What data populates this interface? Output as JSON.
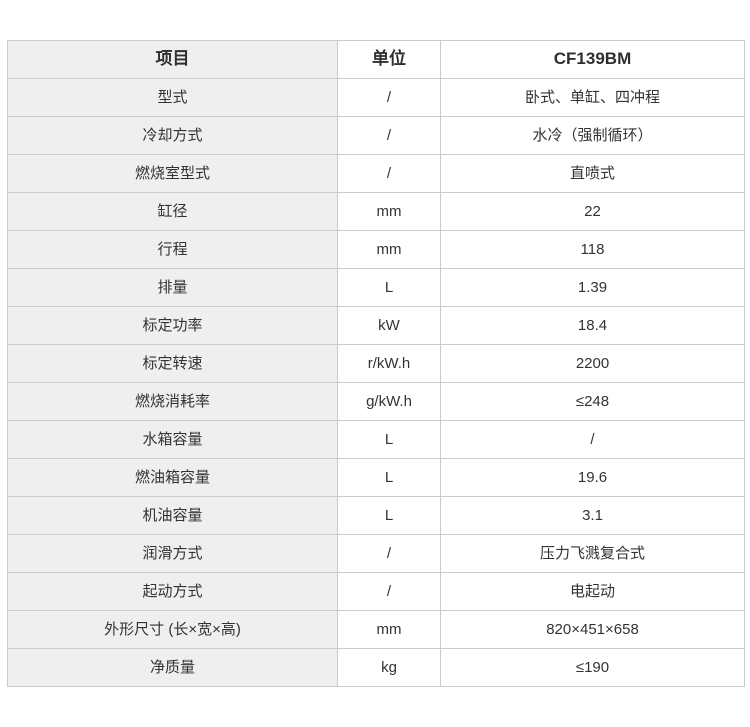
{
  "table": {
    "headers": {
      "item": "项目",
      "unit": "单位",
      "model": "CF139BM"
    },
    "rows": [
      {
        "item": "型式",
        "unit": "/",
        "value": "卧式、单缸、四冲程"
      },
      {
        "item": "冷却方式",
        "unit": "/",
        "value": "水冷（强制循环）"
      },
      {
        "item": "燃烧室型式",
        "unit": "/",
        "value": "直喷式"
      },
      {
        "item": "缸径",
        "unit": "mm",
        "value": "22"
      },
      {
        "item": "行程",
        "unit": "mm",
        "value": "118"
      },
      {
        "item": "排量",
        "unit": "L",
        "value": "1.39"
      },
      {
        "item": "标定功率",
        "unit": "kW",
        "value": "18.4"
      },
      {
        "item": "标定转速",
        "unit": "r/kW.h",
        "value": "2200"
      },
      {
        "item": "燃烧消耗率",
        "unit": "g/kW.h",
        "value": "≤248"
      },
      {
        "item": "水箱容量",
        "unit": "L",
        "value": "/"
      },
      {
        "item": "燃油箱容量",
        "unit": "L",
        "value": "19.6"
      },
      {
        "item": "机油容量",
        "unit": "L",
        "value": "3.1"
      },
      {
        "item": "润滑方式",
        "unit": "/",
        "value": "压力飞溅复合式"
      },
      {
        "item": "起动方式",
        "unit": "/",
        "value": "电起动"
      },
      {
        "item": "外形尺寸 (长×宽×高)",
        "unit": "mm",
        "value": "820×451×658"
      },
      {
        "item": "净质量",
        "unit": "kg",
        "value": "≤190"
      }
    ],
    "colors": {
      "first_col_bg": "#efefef",
      "cell_bg": "#ffffff",
      "inner_border": "#cccccc",
      "outer_border": "#b3b3b3",
      "text": "#333333"
    }
  }
}
